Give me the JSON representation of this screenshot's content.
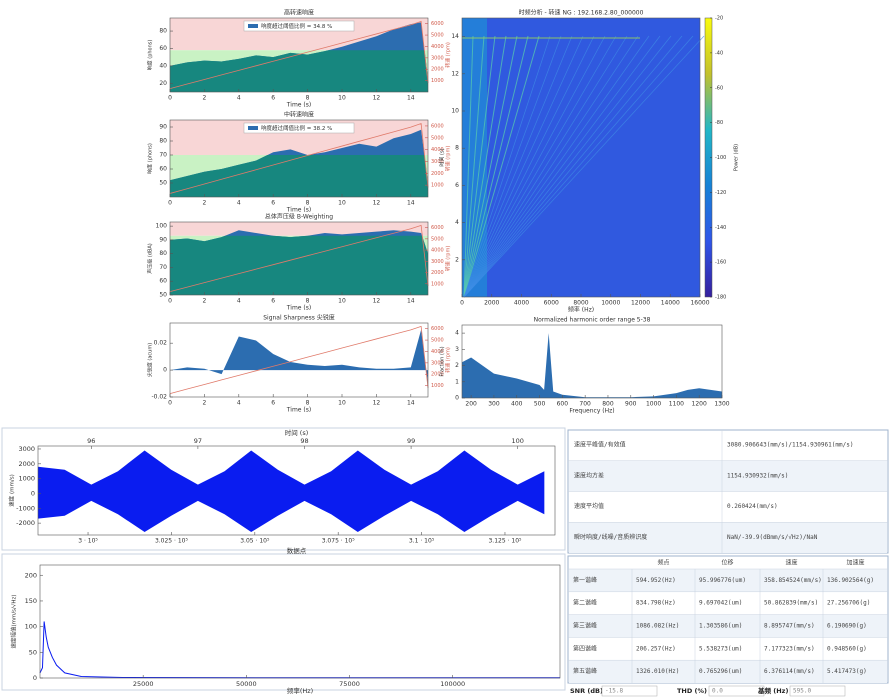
{
  "chart_data": [
    {
      "type": "area",
      "title": "高转速响度",
      "legend": "响度超过阈值比例 = 34.8 %",
      "xlabel": "Time (s)",
      "ylabel": "响度 (phons)",
      "y2label": "转速 (rpm)",
      "x": [
        0,
        1,
        2,
        3,
        4,
        5,
        6,
        7,
        8,
        9,
        10,
        11,
        12,
        13,
        14,
        14.6,
        15
      ],
      "values": [
        40,
        44,
        46,
        45,
        48,
        52,
        50,
        55,
        53,
        57,
        62,
        68,
        74,
        82,
        88,
        90,
        25
      ],
      "rpm": [
        300,
        700,
        1100,
        1500,
        1900,
        2300,
        2700,
        3100,
        3500,
        3900,
        4300,
        4700,
        5100,
        5500,
        5900,
        6200,
        800
      ],
      "threshold": 58,
      "xlim": [
        0,
        15
      ],
      "xticks": [
        0,
        2,
        4,
        6,
        8,
        10,
        12,
        14
      ],
      "ylim": [
        10,
        95
      ],
      "yticks": [
        20,
        40,
        60,
        80
      ],
      "y2lim": [
        0,
        6500
      ],
      "y2ticks": [
        1000,
        2000,
        3000,
        4000,
        5000,
        6000
      ],
      "color": "#2c6db0",
      "below_color": "#17877f",
      "rpm_color": "#e07a6a"
    },
    {
      "type": "area",
      "title": "中转速响度",
      "legend": "响度超过阈值比例 = 38.2 %",
      "xlabel": "Time (s)",
      "ylabel": "响度 (phons)",
      "y2label": "转速 (rpm)",
      "x": [
        0,
        1,
        2,
        3,
        4,
        5,
        6,
        7,
        8,
        9,
        10,
        11,
        12,
        13,
        14,
        14.6,
        15
      ],
      "values": [
        52,
        55,
        58,
        60,
        63,
        66,
        72,
        74,
        70,
        72,
        75,
        78,
        76,
        82,
        85,
        88,
        50
      ],
      "rpm": [
        300,
        700,
        1100,
        1500,
        1900,
        2300,
        2700,
        3100,
        3500,
        3900,
        4300,
        4700,
        5100,
        5500,
        5900,
        6200,
        800
      ],
      "threshold": 70,
      "xlim": [
        0,
        15
      ],
      "xticks": [
        0,
        2,
        4,
        6,
        8,
        10,
        12,
        14
      ],
      "ylim": [
        40,
        95
      ],
      "yticks": [
        50,
        60,
        70,
        80,
        90
      ],
      "y2lim": [
        0,
        6500
      ],
      "y2ticks": [
        1000,
        2000,
        3000,
        4000,
        5000,
        6000
      ],
      "color": "#2c6db0",
      "below_color": "#17877f",
      "rpm_color": "#e07a6a"
    },
    {
      "type": "area",
      "title": "总体声压级 B-Weighting",
      "xlabel": "Time (s)",
      "ylabel": "声压级 (dBA)",
      "y2label": "转速 (rpm)",
      "x": [
        0,
        1,
        2,
        3,
        4,
        5,
        6,
        7,
        8,
        9,
        10,
        11,
        12,
        13,
        14,
        14.6,
        15
      ],
      "values": [
        90,
        91,
        89,
        92,
        97,
        95,
        93,
        92,
        93,
        95,
        94,
        95,
        96,
        97,
        96,
        95,
        80
      ],
      "rpm": [
        300,
        700,
        1100,
        1500,
        1900,
        2300,
        2700,
        3100,
        3500,
        3900,
        4300,
        4700,
        5100,
        5500,
        5900,
        6200,
        800
      ],
      "threshold": 93,
      "xlim": [
        0,
        15
      ],
      "xticks": [
        0,
        2,
        4,
        6,
        8,
        10,
        12,
        14
      ],
      "ylim": [
        50,
        103
      ],
      "yticks": [
        50,
        60,
        70,
        80,
        90,
        100
      ],
      "y2lim": [
        0,
        6500
      ],
      "y2ticks": [
        1000,
        2000,
        3000,
        4000,
        5000,
        6000
      ],
      "color": "#2c6db0",
      "below_color": "#17877f",
      "rpm_color": "#e07a6a"
    },
    {
      "type": "area",
      "title": "Signal Sharpness 尖锐度",
      "xlabel": "Time (s)",
      "ylabel": "尖锐度 (acum)",
      "y2label": "转速 (rpm)",
      "x": [
        0,
        1,
        2,
        3,
        4,
        5,
        6,
        7,
        8,
        9,
        10,
        11,
        12,
        13,
        14,
        14.6,
        15
      ],
      "values": [
        0,
        0.002,
        0.001,
        -0.003,
        0.025,
        0.022,
        0.012,
        0.006,
        0.004,
        0.003,
        0.004,
        0.002,
        0.001,
        0.001,
        0.002,
        0.03,
        -0.01
      ],
      "rpm": [
        300,
        700,
        1100,
        1500,
        1900,
        2300,
        2700,
        3100,
        3500,
        3900,
        4300,
        4700,
        5100,
        5500,
        5900,
        6200,
        800
      ],
      "xlim": [
        0,
        15
      ],
      "xticks": [
        0,
        2,
        4,
        6,
        8,
        10,
        12,
        14
      ],
      "ylim": [
        -0.02,
        0.035
      ],
      "yticks": [
        -0.02,
        0,
        0.02
      ],
      "y2lim": [
        0,
        6500
      ],
      "y2ticks": [
        1000,
        2000,
        3000,
        4000,
        5000,
        6000
      ],
      "color": "#2c6db0",
      "rpm_color": "#e07a6a"
    },
    {
      "type": "spectrogram",
      "title": "时频分析 - 转速 NG : 192.168.2.80_000000",
      "xlabel": "频率 (Hz)",
      "ylabel": "时间 (s)",
      "colorbar_label": "Power (dB)",
      "xlim": [
        0,
        16000
      ],
      "xticks": [
        0,
        2000,
        4000,
        6000,
        8000,
        10000,
        12000,
        14000,
        16000
      ],
      "ylim": [
        0,
        15
      ],
      "yticks": [
        2,
        4,
        6,
        8,
        10,
        12,
        14
      ],
      "clim": [
        -180,
        -20
      ],
      "cticks": [
        -20,
        -40,
        -60,
        -80,
        -100,
        -120,
        -140,
        -160,
        -180
      ]
    },
    {
      "type": "area",
      "title": "Normalized harmonic order range 5-38",
      "xlabel": "Frequency (Hz)",
      "ylabel": "Fraction (%)",
      "x": [
        160,
        200,
        300,
        400,
        450,
        500,
        520,
        540,
        560,
        600,
        700,
        800,
        900,
        1000,
        1100,
        1150,
        1200,
        1300
      ],
      "values": [
        2.2,
        2.5,
        1.5,
        1.2,
        1.0,
        0.8,
        0.5,
        4.0,
        0.4,
        0.2,
        0.05,
        0.05,
        0.05,
        0.1,
        0.3,
        0.5,
        0.6,
        0.4
      ],
      "xlim": [
        160,
        1300
      ],
      "xticks": [
        200,
        300,
        400,
        500,
        600,
        700,
        800,
        900,
        1000,
        1100,
        1200,
        1300
      ],
      "ylim": [
        0,
        4.5
      ],
      "yticks": [
        0,
        1,
        2,
        3,
        4
      ],
      "color": "#2c6db0"
    },
    {
      "type": "waveform",
      "title": "时间 (s)",
      "xlabel": "数据点",
      "ylabel": "速度 (mm/s)",
      "x": [
        95.5,
        95.75,
        96,
        96.25,
        96.5,
        96.75,
        97,
        97.25,
        97.5,
        97.75,
        98,
        98.25,
        98.5,
        98.75,
        99,
        99.25,
        99.5,
        99.75,
        100,
        100.25
      ],
      "upper": [
        1800,
        1600,
        600,
        1500,
        2900,
        1600,
        600,
        1500,
        2900,
        1600,
        600,
        1500,
        2900,
        1600,
        600,
        1500,
        2900,
        1600,
        600,
        1500
      ],
      "lower": [
        -1700,
        -1500,
        -500,
        -1400,
        -2600,
        -1500,
        -500,
        -1400,
        -2600,
        -1500,
        -500,
        -1400,
        -2600,
        -1500,
        -500,
        -1400,
        -2600,
        -1500,
        -500,
        -1400
      ],
      "xlim": [
        95.5,
        100.35
      ],
      "xticks": [
        96,
        97,
        98,
        99,
        100
      ],
      "ylim": [
        -2800,
        3200
      ],
      "yticks": [
        -2000,
        -1000,
        0,
        1000,
        2000,
        3000
      ],
      "x2lim": [
        298500,
        314000
      ],
      "x2ticks": [
        {
          "value": 300000,
          "label": "3 · 10⁵"
        },
        {
          "value": 302500,
          "label": "3.025 · 10⁵"
        },
        {
          "value": 305000,
          "label": "3.05 · 10⁵"
        },
        {
          "value": 307500,
          "label": "3.075 · 10⁵"
        },
        {
          "value": 310000,
          "label": "3.1 · 10⁵"
        },
        {
          "value": 312500,
          "label": "3.125 · 10⁵"
        }
      ],
      "color": "#0a1cf0"
    },
    {
      "type": "line",
      "xlabel": "频率(Hz)",
      "ylabel": "速度幅值(mm/s/√Hz)",
      "x": [
        0,
        600,
        1000,
        1500,
        2000,
        3000,
        4000,
        6000,
        10000,
        20000,
        60000,
        126000
      ],
      "values": [
        10,
        20,
        110,
        80,
        60,
        40,
        25,
        10,
        3,
        1,
        0.5,
        0.5
      ],
      "xlim": [
        0,
        126000
      ],
      "xticks": [
        25000,
        50000,
        75000,
        100000
      ],
      "ylim": [
        0,
        220
      ],
      "yticks": [
        0,
        50,
        100,
        150,
        200
      ],
      "color": "#0a1cf0"
    }
  ],
  "stats_table": {
    "rows": [
      [
        "速度平峰值/有效值",
        "3080.906643(mm/s)/1154.930961(mm/s)"
      ],
      [
        "速度均方差",
        "1154.930932(mm/s)"
      ],
      [
        "速度平均值",
        "0.260424(mm/s)"
      ],
      [
        "瞬时响度/线噪/音质辨识度",
        "NaN/-39.9(dBmm/s/√Hz)/NaN"
      ]
    ]
  },
  "harmonic_table": {
    "header": [
      "频点",
      "位移",
      "速度",
      "加速度"
    ],
    "rows": [
      {
        "name": "第一谐峰",
        "values": [
          "594.952(Hz)",
          "95.996776(um)",
          "358.854524(mm/s)",
          "136.902564(g)"
        ]
      },
      {
        "name": "第二谐峰",
        "values": [
          "834.798(Hz)",
          "9.697042(um)",
          "50.862839(mm/s)",
          "27.256706(g)"
        ]
      },
      {
        "name": "第三谐峰",
        "values": [
          "1086.082(Hz)",
          "1.303586(um)",
          "8.895747(mm/s)",
          "6.190690(g)"
        ]
      },
      {
        "name": "第四谐峰",
        "values": [
          "206.257(Hz)",
          "5.538273(um)",
          "7.177323(mm/s)",
          "0.948560(g)"
        ]
      },
      {
        "name": "第五谐峰",
        "values": [
          "1326.010(Hz)",
          "0.765296(um)",
          "6.376114(mm/s)",
          "5.417473(g)"
        ]
      }
    ]
  },
  "status_bar": {
    "snr_label": "SNR (dB)",
    "snr": "-15.8",
    "thd_label": "THD (%)",
    "thd": "0.0",
    "f0_label": "基频 (Hz)",
    "f0": "595.0"
  }
}
